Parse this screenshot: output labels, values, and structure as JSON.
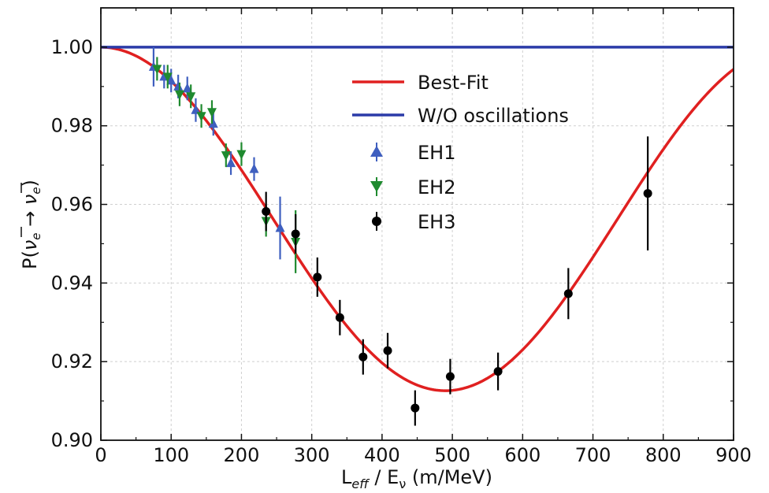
{
  "chart_data": {
    "type": "scatter",
    "xlabel": {
      "main": "L",
      "sub": "eff",
      "rest": " / E",
      "sub2": "ν",
      "unit": " (m/MeV)"
    },
    "ylabel": {
      "main": "P(",
      "nu1": "ν",
      "sub1": "e",
      "arrow": " → ",
      "nu2": "ν",
      "sub2": "e",
      "close": ")"
    },
    "xlim": [
      0,
      900
    ],
    "ylim": [
      0.9,
      1.01
    ],
    "x_ticks": [
      0,
      100,
      200,
      300,
      400,
      500,
      600,
      700,
      800,
      900
    ],
    "x_tick_labels": [
      "0",
      "100",
      "200",
      "300",
      "400",
      "500",
      "600",
      "700",
      "800",
      "900"
    ],
    "y_ticks": [
      0.9,
      0.92,
      0.94,
      0.96,
      0.98,
      1.0
    ],
    "y_tick_labels": [
      "0.90",
      "0.92",
      "0.94",
      "0.96",
      "0.98",
      "1.00"
    ],
    "grid": true,
    "legend_position": "upper-center",
    "model": {
      "amplitude": 0.0874,
      "min_location": 490
    },
    "series": [
      {
        "name": "Best-Fit",
        "kind": "line",
        "color": "#e02020"
      },
      {
        "name": "W/O oscillations",
        "kind": "line",
        "color": "#2b3ba8",
        "y": 1.0
      },
      {
        "name": "EH1",
        "kind": "points",
        "marker": "triangle-up",
        "color": "#3f5fbf",
        "points": [
          {
            "x": 75,
            "y": 0.995,
            "err": 0.005
          },
          {
            "x": 90,
            "y": 0.9925,
            "err": 0.003
          },
          {
            "x": 100,
            "y": 0.9915,
            "err": 0.003
          },
          {
            "x": 110,
            "y": 0.99,
            "err": 0.003
          },
          {
            "x": 123,
            "y": 0.9895,
            "err": 0.003
          },
          {
            "x": 135,
            "y": 0.984,
            "err": 0.003
          },
          {
            "x": 160,
            "y": 0.9805,
            "err": 0.003
          },
          {
            "x": 185,
            "y": 0.9705,
            "err": 0.003
          },
          {
            "x": 218,
            "y": 0.969,
            "err": 0.003
          },
          {
            "x": 255,
            "y": 0.954,
            "err": 0.008
          }
        ]
      },
      {
        "name": "EH2",
        "kind": "points",
        "marker": "triangle-down",
        "color": "#1f8a2f",
        "points": [
          {
            "x": 80,
            "y": 0.9945,
            "err": 0.003
          },
          {
            "x": 95,
            "y": 0.9925,
            "err": 0.003
          },
          {
            "x": 112,
            "y": 0.988,
            "err": 0.003
          },
          {
            "x": 128,
            "y": 0.9875,
            "err": 0.003
          },
          {
            "x": 143,
            "y": 0.9825,
            "err": 0.003
          },
          {
            "x": 158,
            "y": 0.9835,
            "err": 0.003
          },
          {
            "x": 178,
            "y": 0.9725,
            "err": 0.003
          },
          {
            "x": 200,
            "y": 0.9728,
            "err": 0.003
          },
          {
            "x": 235,
            "y": 0.9558,
            "err": 0.004
          },
          {
            "x": 277,
            "y": 0.9505,
            "err": 0.008
          }
        ]
      },
      {
        "name": "EH3",
        "kind": "points",
        "marker": "circle",
        "color": "#000000",
        "points": [
          {
            "x": 235,
            "y": 0.9582,
            "err": 0.005
          },
          {
            "x": 277,
            "y": 0.9525,
            "err": 0.005
          },
          {
            "x": 308,
            "y": 0.9415,
            "err": 0.005
          },
          {
            "x": 340,
            "y": 0.9312,
            "err": 0.0045
          },
          {
            "x": 373,
            "y": 0.9212,
            "err": 0.0045
          },
          {
            "x": 408,
            "y": 0.9228,
            "err": 0.0045
          },
          {
            "x": 447,
            "y": 0.9082,
            "err": 0.0045
          },
          {
            "x": 497,
            "y": 0.9162,
            "err": 0.0045
          },
          {
            "x": 565,
            "y": 0.9175,
            "err": 0.0048
          },
          {
            "x": 665,
            "y": 0.9373,
            "err": 0.0065
          },
          {
            "x": 778,
            "y": 0.9628,
            "err": 0.0145
          }
        ]
      }
    ]
  }
}
